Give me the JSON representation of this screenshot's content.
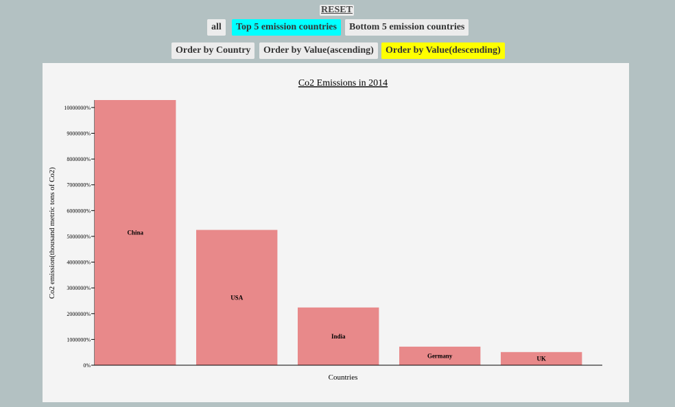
{
  "controls": {
    "reset_label": "RESET",
    "all_label": "all",
    "top5_label": "Top 5 emission countries",
    "bottom5_label": "Bottom 5 emission countries",
    "order_country_label": "Order by Country",
    "order_asc_label": "Order by Value(ascending)",
    "order_desc_label": "Order by Value(descending)"
  },
  "colors": {
    "bar": "#e8898a",
    "top5_active": "#00ffff",
    "desc_active": "#ffff00"
  },
  "chart_data": {
    "type": "bar",
    "title": "Co2 Emissions in 2014",
    "xlabel": "Countries",
    "ylabel": "Co2 emission(thousand metric tons of Co2)",
    "categories": [
      "China",
      "USA",
      "India",
      "Germany",
      "UK"
    ],
    "values": [
      10290000,
      5250000,
      2240000,
      720000,
      510000
    ],
    "ylim": [
      0,
      10290000
    ],
    "yticks": [
      0,
      1000000,
      2000000,
      3000000,
      4000000,
      5000000,
      6000000,
      7000000,
      8000000,
      9000000,
      10000000
    ],
    "ytick_labels": [
      "0%",
      "1000000%",
      "2000000%",
      "3000000%",
      "4000000%",
      "5000000%",
      "6000000%",
      "7000000%",
      "8000000%",
      "9000000%",
      "10000000%"
    ],
    "grid": false,
    "legend": "none"
  }
}
